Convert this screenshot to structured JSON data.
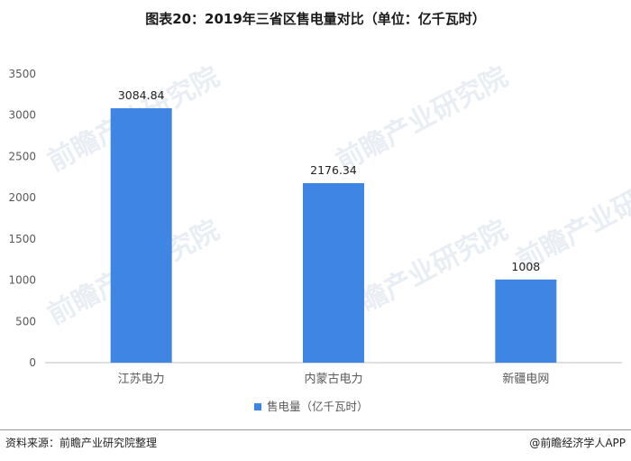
{
  "title": "图表20：2019年三省区售电量对比（单位：亿千瓦时）",
  "watermark": "前瞻产业研究院",
  "source": "资料来源：前瞻产业研究院整理",
  "brand": "@前瞻经济学人APP",
  "colors": {
    "bar": "#3f86e4",
    "axis": "#bfbfbf",
    "label": "#595959"
  },
  "chart_data": {
    "type": "bar",
    "categories": [
      "江苏电力",
      "内蒙古电力",
      "新疆电网"
    ],
    "series": [
      {
        "name": "售电量（亿千瓦时）",
        "values": [
          3084.84,
          2176.34,
          1008
        ]
      }
    ],
    "data_labels": [
      "3084.84",
      "2176.34",
      "1008"
    ],
    "ylim": [
      0,
      3500
    ],
    "yticks": [
      0,
      500,
      1000,
      1500,
      2000,
      2500,
      3000,
      3500
    ],
    "grid": false,
    "legend": "bottom"
  }
}
